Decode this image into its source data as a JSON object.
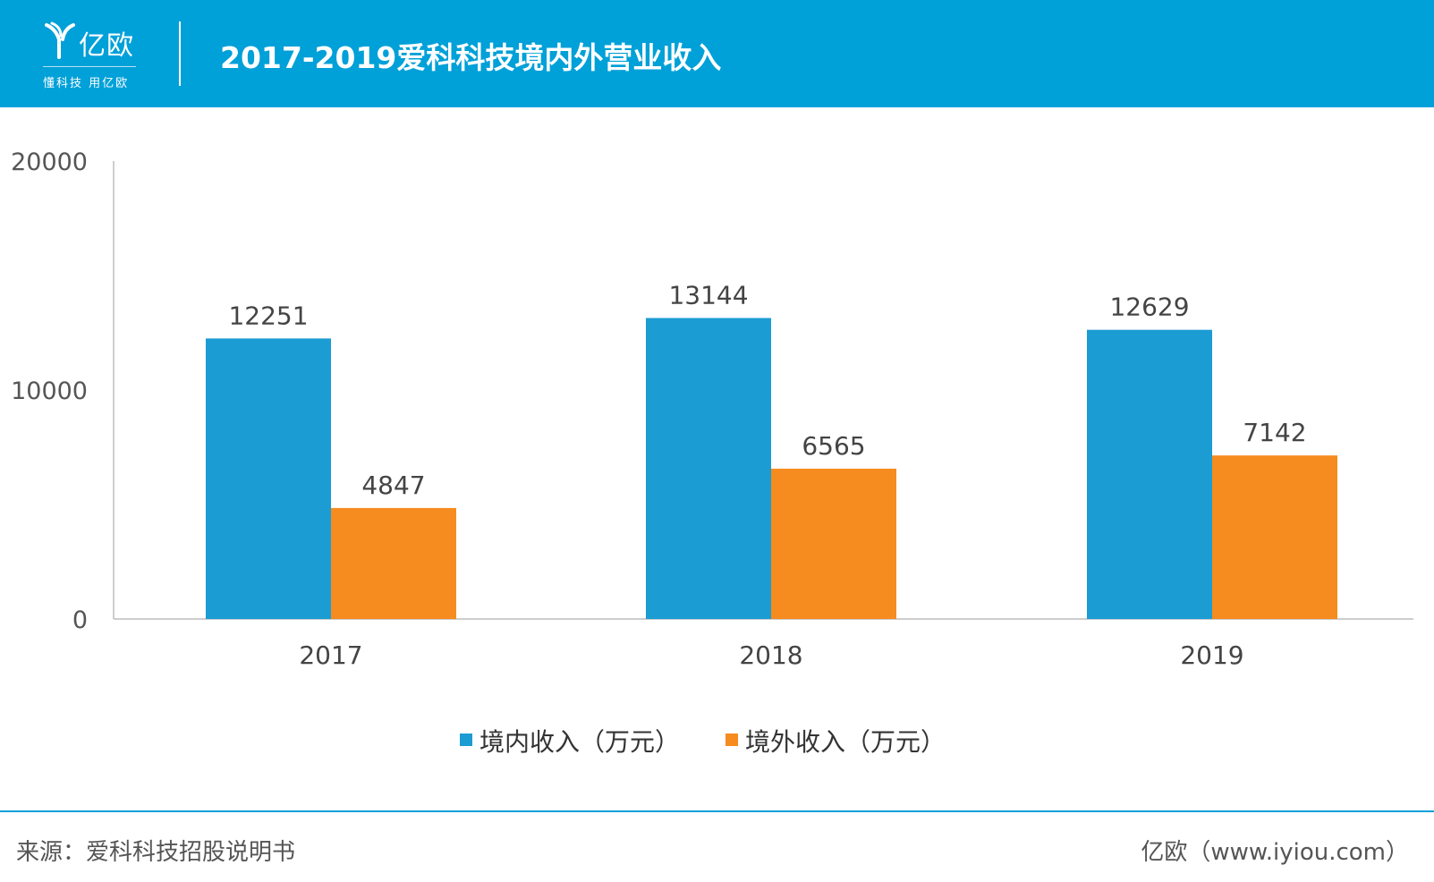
{
  "header": {
    "logo_name": "亿欧",
    "logo_slogan": "懂科技 用亿欧",
    "title": "2017-2019爱科科技境内外营业收入"
  },
  "colors": {
    "header_bg": "#00a0d8",
    "domestic": "#1b9cd3",
    "overseas": "#f68b1f"
  },
  "chart_data": {
    "type": "bar",
    "categories": [
      "2017",
      "2018",
      "2019"
    ],
    "series": [
      {
        "name": "境内收入（万元）",
        "values": [
          12251,
          13144,
          12629
        ]
      },
      {
        "name": "境外收入（万元）",
        "values": [
          4847,
          6565,
          7142
        ]
      }
    ],
    "yticks": [
      "0",
      "10000",
      "20000"
    ],
    "ylim": [
      0,
      20000
    ],
    "grid": false,
    "legend_position": "bottom"
  },
  "footer": {
    "source": "来源：爱科科技招股说明书",
    "brand": "亿欧（www.iyiou.com）"
  }
}
